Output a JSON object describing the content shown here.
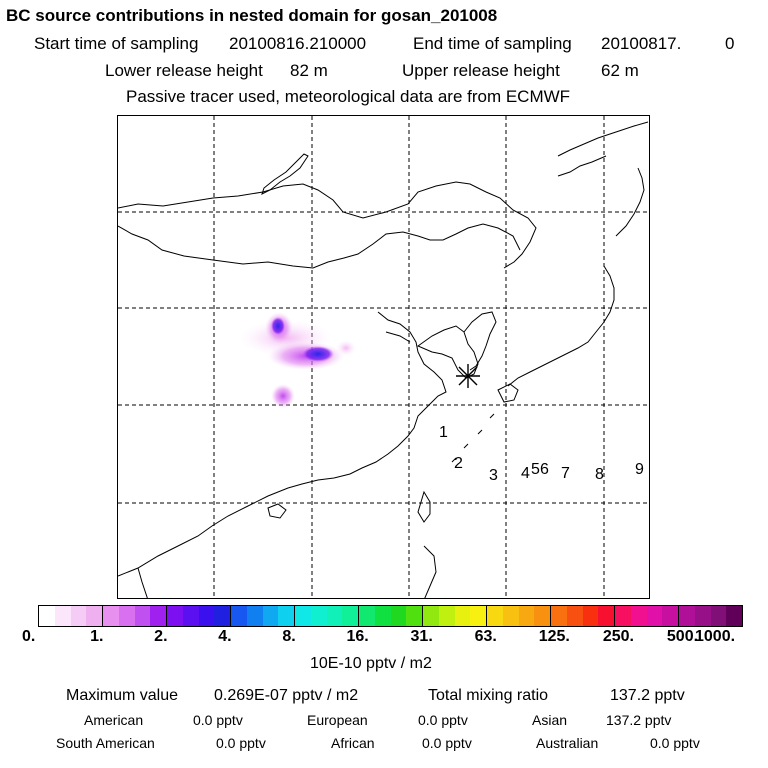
{
  "title": "BC  source contributions in nested domain for gosan_201008",
  "header": {
    "start_label": "Start time of sampling",
    "start_value": "20100816.210000",
    "end_label": "End time of sampling",
    "end_value": "20100817.",
    "end_suffix": "0",
    "lower_label": "Lower release height",
    "lower_value": "82 m",
    "upper_label": "Upper release height",
    "upper_value": "62 m",
    "note": "Passive tracer used, meteorological data are from ECMWF"
  },
  "map": {
    "receptor_marker": "asterisk-icon",
    "site_labels": [
      "1",
      "2",
      "3",
      "4",
      "5",
      "6",
      "7",
      "8",
      "9"
    ]
  },
  "colorbar": {
    "tick_labels": [
      "0.",
      "1.",
      "2.",
      "4.",
      "8.",
      "16.",
      "31.",
      "63.",
      "125.",
      "250.",
      "500.",
      "1000."
    ],
    "unit_label": "10E-10 pptv / m2",
    "colors": [
      [
        "#ffffff",
        "#fbe6fb",
        "#f5ccf5",
        "#efb0ef"
      ],
      [
        "#e890f0",
        "#d870f0",
        "#c050f0",
        "#a020f0"
      ],
      [
        "#7c10f0",
        "#5a10f0",
        "#3a10ee",
        "#2020e0"
      ],
      [
        "#1858f0",
        "#1080f0",
        "#10a8f0",
        "#10d0f0"
      ],
      [
        "#10e8e8",
        "#10f0d0",
        "#10f0b8",
        "#10f098"
      ],
      [
        "#10e870",
        "#10e040",
        "#20d820",
        "#50e010"
      ],
      [
        "#90e810",
        "#c0f010",
        "#e8f010",
        "#f8f010"
      ],
      [
        "#f8d810",
        "#f8c010",
        "#f8a810",
        "#f89010"
      ],
      [
        "#f87010",
        "#f85010",
        "#f83010",
        "#f81030"
      ],
      [
        "#f81060",
        "#f01090",
        "#e010a8",
        "#c810a0"
      ],
      [
        "#b01098",
        "#981088",
        "#801078",
        "#600058"
      ]
    ]
  },
  "stats": {
    "max_label": "Maximum value",
    "max_value": "0.269E-07 pptv / m2",
    "total_label": "Total mixing ratio",
    "total_value": "137.2 pptv",
    "regions": [
      {
        "name": "American",
        "value": "0.0 pptv"
      },
      {
        "name": "European",
        "value": "0.0 pptv"
      },
      {
        "name": "Asian",
        "value": "137.2 pptv"
      },
      {
        "name": "South American",
        "value": "0.0 pptv"
      },
      {
        "name": "African",
        "value": "0.0 pptv"
      },
      {
        "name": "Australian",
        "value": "0.0 pptv"
      }
    ]
  }
}
